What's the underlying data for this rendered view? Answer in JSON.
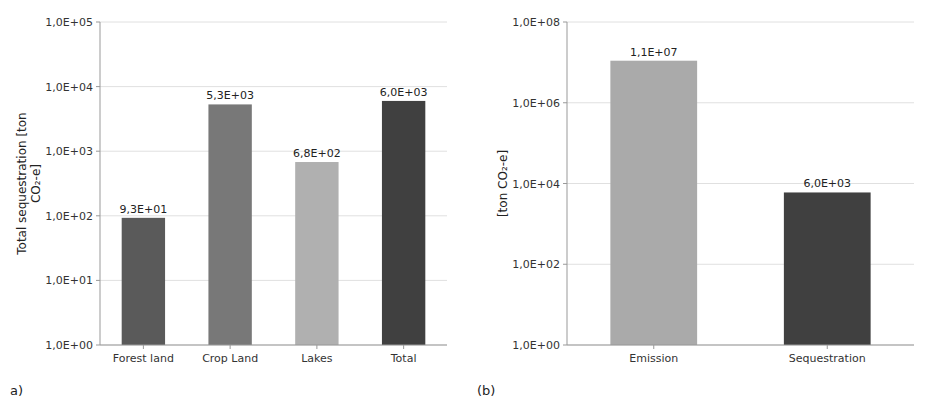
{
  "chart_data": [
    {
      "type": "bar",
      "categories": [
        "Forest land",
        "Crop Land",
        "Lakes",
        "Total"
      ],
      "values": [
        93.0,
        5300.0,
        680.0,
        6000.0
      ],
      "value_labels": [
        "9,3E+01",
        "5,3E+03",
        "6,8E+02",
        "6,0E+03"
      ],
      "colors": [
        "#5a5a5a",
        "#787878",
        "#b0b0b0",
        "#404040"
      ],
      "ylabel": "Total sequestration [ton\nCO₂-e]",
      "log": "y",
      "ylim": [
        1.0,
        100000
      ],
      "yticks": [
        {
          "value": 1,
          "label": "1,0E+00"
        },
        {
          "value": 10,
          "label": "1,0E+01"
        },
        {
          "value": 100,
          "label": "1,0E+02"
        },
        {
          "value": 1000,
          "label": "1,0E+03"
        },
        {
          "value": 10000,
          "label": "1,0E+04"
        },
        {
          "value": 100000,
          "label": "1,0E+05"
        }
      ],
      "grid": true,
      "data_labels": true,
      "annotations": [
        "a)"
      ]
    },
    {
      "type": "bar",
      "categories": [
        "Emission",
        "Sequestration"
      ],
      "values": [
        11000000.0,
        6000.0
      ],
      "value_labels": [
        "1,1E+07",
        "6,0E+03"
      ],
      "colors": [
        "#aaaaaa",
        "#404040"
      ],
      "ylabel": "[ton CO₂-e]",
      "log": "y",
      "ylim": [
        1.0,
        100000000
      ],
      "yticks": [
        {
          "value": 1,
          "label": "1,0E+00"
        },
        {
          "value": 100,
          "label": "1,0E+02"
        },
        {
          "value": 10000,
          "label": "1,0E+04"
        },
        {
          "value": 1000000,
          "label": "1,0E+06"
        },
        {
          "value": 100000000,
          "label": "1,0E+08"
        }
      ],
      "grid": true,
      "data_labels": true,
      "annotations": [
        "(b)"
      ]
    }
  ]
}
